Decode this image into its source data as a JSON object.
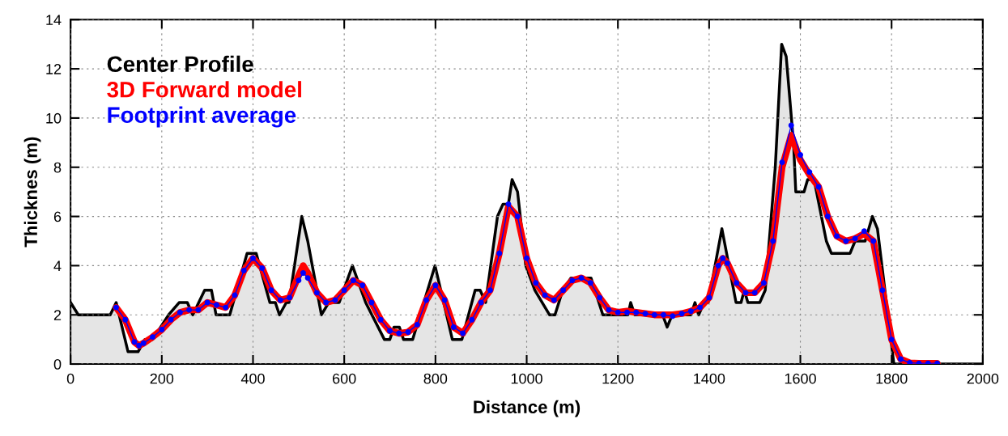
{
  "chart_data": {
    "type": "line",
    "xlabel": "Distance (m)",
    "ylabel": "Thicknes (m)",
    "xlim": [
      0,
      2000
    ],
    "xticks": [
      0,
      200,
      400,
      600,
      800,
      1000,
      1200,
      1400,
      1600,
      1800,
      2000
    ],
    "ylim": [
      0,
      14
    ],
    "yticks": [
      0,
      2,
      4,
      6,
      8,
      10,
      12,
      14
    ],
    "grid": true,
    "legend": "top left",
    "series": [
      {
        "name": "Center Profile",
        "type": "area",
        "color": "#000000",
        "x": [
          0,
          17,
          87,
          100,
          126,
          148,
          163,
          180,
          215,
          238,
          256,
          268,
          294,
          309,
          319,
          349,
          387,
          407,
          437,
          449,
          458,
          473,
          479,
          507,
          520,
          540,
          550,
          566,
          589,
          618,
          647,
          688,
          700,
          709,
          721,
          730,
          750,
          799,
          837,
          858,
          887,
          898,
          910,
          936,
          948,
          960,
          968,
          980,
          998,
          1018,
          1050,
          1062,
          1079,
          1097,
          1141,
          1167,
          1222,
          1228,
          1237,
          1298,
          1308,
          1319,
          1360,
          1369,
          1377,
          1389,
          1398,
          1428,
          1459,
          1470,
          1477,
          1485,
          1511,
          1523,
          1545,
          1559,
          1569,
          1585,
          1590,
          1608,
          1616,
          1630,
          1657,
          1668,
          1709,
          1720,
          1742,
          1758,
          1769,
          1805,
          2000
        ],
        "values": [
          2.5,
          2.0,
          2.0,
          2.5,
          0.5,
          0.5,
          1.0,
          1.0,
          2.0,
          2.5,
          2.5,
          2.0,
          3.0,
          3.0,
          2.0,
          2.0,
          4.5,
          4.5,
          2.5,
          2.5,
          2.0,
          2.5,
          2.5,
          6.0,
          5.0,
          3.0,
          2.0,
          2.5,
          2.5,
          4.0,
          2.5,
          1.0,
          1.0,
          1.5,
          1.5,
          1.0,
          1.0,
          4.0,
          1.0,
          1.0,
          3.0,
          3.0,
          2.5,
          6.0,
          6.5,
          6.5,
          7.5,
          7.0,
          4.0,
          3.0,
          2.0,
          2.0,
          3.0,
          3.5,
          3.5,
          2.0,
          2.0,
          2.5,
          2.0,
          2.0,
          1.5,
          2.0,
          2.0,
          2.5,
          2.0,
          2.5,
          2.5,
          5.5,
          2.5,
          2.5,
          3.0,
          2.5,
          2.5,
          3.0,
          8.0,
          13.0,
          12.5,
          9.0,
          7.0,
          7.0,
          7.5,
          7.5,
          5.0,
          4.5,
          4.5,
          5.0,
          5.0,
          6.0,
          5.5,
          0,
          0
        ]
      },
      {
        "name": "3D Forward model",
        "color": "#ff0000",
        "x": [
          100,
          120,
          140,
          150,
          160,
          180,
          200,
          220,
          240,
          260,
          280,
          300,
          320,
          340,
          360,
          380,
          400,
          420,
          440,
          460,
          480,
          500,
          510,
          520,
          540,
          560,
          580,
          600,
          620,
          640,
          660,
          680,
          700,
          720,
          740,
          760,
          780,
          800,
          820,
          840,
          860,
          880,
          900,
          920,
          940,
          960,
          980,
          1000,
          1020,
          1040,
          1060,
          1080,
          1100,
          1120,
          1140,
          1160,
          1180,
          1200,
          1220,
          1240,
          1260,
          1280,
          1300,
          1320,
          1340,
          1360,
          1380,
          1400,
          1420,
          1430,
          1440,
          1460,
          1480,
          1500,
          1520,
          1540,
          1560,
          1580,
          1600,
          1620,
          1640,
          1660,
          1680,
          1700,
          1720,
          1740,
          1760,
          1780,
          1800,
          1820,
          1840,
          1860,
          1880,
          1900
        ],
        "values": [
          2.3,
          1.8,
          0.9,
          0.75,
          0.85,
          1.1,
          1.4,
          1.8,
          2.1,
          2.2,
          2.2,
          2.5,
          2.4,
          2.3,
          2.8,
          3.8,
          4.3,
          3.9,
          3.0,
          2.6,
          2.7,
          3.6,
          4.0,
          3.7,
          2.9,
          2.5,
          2.6,
          3.0,
          3.4,
          3.2,
          2.5,
          1.8,
          1.35,
          1.25,
          1.3,
          1.6,
          2.6,
          3.2,
          2.6,
          1.5,
          1.25,
          1.8,
          2.5,
          3.0,
          4.5,
          6.4,
          6.0,
          4.3,
          3.3,
          2.8,
          2.6,
          3.0,
          3.4,
          3.5,
          3.3,
          2.7,
          2.2,
          2.1,
          2.15,
          2.1,
          2.05,
          2.0,
          2.0,
          2.0,
          2.05,
          2.15,
          2.3,
          2.7,
          4.0,
          4.3,
          4.1,
          3.3,
          2.9,
          2.9,
          3.3,
          5.0,
          8.0,
          9.3,
          8.3,
          7.7,
          7.2,
          6.0,
          5.2,
          5.0,
          5.1,
          5.3,
          5.0,
          3.0,
          1.0,
          0.2,
          0.05,
          0.03,
          0.03,
          0.03
        ]
      },
      {
        "name": "Footprint average",
        "marker": "circle",
        "color": "#0000ff",
        "x": [
          100,
          120,
          140,
          150,
          160,
          180,
          200,
          220,
          240,
          260,
          280,
          300,
          320,
          340,
          360,
          380,
          400,
          420,
          440,
          460,
          480,
          500,
          510,
          520,
          540,
          560,
          580,
          600,
          620,
          640,
          660,
          680,
          700,
          720,
          740,
          760,
          780,
          800,
          820,
          840,
          860,
          880,
          900,
          920,
          940,
          960,
          980,
          1000,
          1020,
          1040,
          1060,
          1080,
          1100,
          1120,
          1140,
          1160,
          1180,
          1200,
          1220,
          1240,
          1260,
          1280,
          1300,
          1320,
          1340,
          1360,
          1380,
          1400,
          1420,
          1430,
          1440,
          1460,
          1480,
          1500,
          1520,
          1540,
          1560,
          1580,
          1600,
          1620,
          1640,
          1660,
          1680,
          1700,
          1720,
          1740,
          1760,
          1780,
          1800,
          1820,
          1840,
          1860,
          1880,
          1900
        ],
        "values": [
          2.3,
          1.8,
          0.9,
          0.75,
          0.85,
          1.1,
          1.4,
          1.8,
          2.1,
          2.2,
          2.2,
          2.5,
          2.4,
          2.3,
          2.8,
          3.8,
          4.3,
          3.9,
          3.0,
          2.6,
          2.7,
          3.4,
          3.7,
          3.5,
          2.9,
          2.5,
          2.6,
          3.0,
          3.4,
          3.2,
          2.5,
          1.8,
          1.35,
          1.25,
          1.3,
          1.6,
          2.6,
          3.2,
          2.6,
          1.5,
          1.25,
          1.8,
          2.5,
          3.0,
          4.5,
          6.5,
          6.0,
          4.3,
          3.3,
          2.8,
          2.6,
          3.0,
          3.4,
          3.5,
          3.3,
          2.7,
          2.2,
          2.1,
          2.1,
          2.1,
          2.05,
          2.0,
          2.0,
          1.95,
          2.05,
          2.15,
          2.3,
          2.7,
          4.0,
          4.3,
          4.1,
          3.3,
          2.9,
          2.9,
          3.3,
          5.0,
          8.2,
          9.7,
          8.5,
          7.8,
          7.2,
          6.0,
          5.2,
          5.0,
          5.1,
          5.4,
          5.0,
          3.0,
          1.0,
          0.2,
          0.05,
          0.03,
          0.03,
          0.03
        ]
      }
    ]
  }
}
